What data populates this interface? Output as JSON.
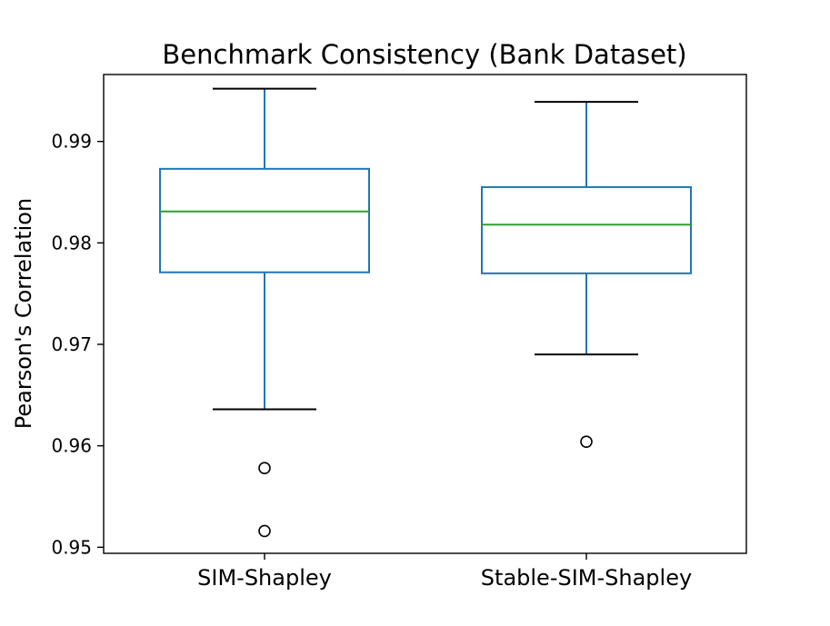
{
  "chart_data": {
    "type": "box",
    "title": "Benchmark Consistency (Bank Dataset)",
    "xlabel": "",
    "ylabel": "Pearson's Correlation",
    "ylim": [
      0.9494,
      0.9966
    ],
    "yticks": [
      0.95,
      0.96,
      0.97,
      0.98,
      0.99
    ],
    "ytick_labels": [
      "0.95",
      "0.96",
      "0.97",
      "0.98",
      "0.99"
    ],
    "grid": false,
    "categories": [
      "SIM-Shapley",
      "Stable-SIM-Shapley"
    ],
    "boxes": [
      {
        "category": "SIM-Shapley",
        "whisker_low": 0.9636,
        "q1": 0.9771,
        "median": 0.9831,
        "q3": 0.9873,
        "whisker_high": 0.9952,
        "outliers": [
          0.9578,
          0.9516
        ]
      },
      {
        "category": "Stable-SIM-Shapley",
        "whisker_low": 0.969,
        "q1": 0.977,
        "median": 0.9818,
        "q3": 0.9855,
        "whisker_high": 0.9939,
        "outliers": [
          0.9604
        ]
      }
    ],
    "colors": {
      "box": "#1f77b4",
      "median": "#2ca02c",
      "whisker_cap": "#000000",
      "outlier": "#000000",
      "axes": "#000000"
    }
  }
}
